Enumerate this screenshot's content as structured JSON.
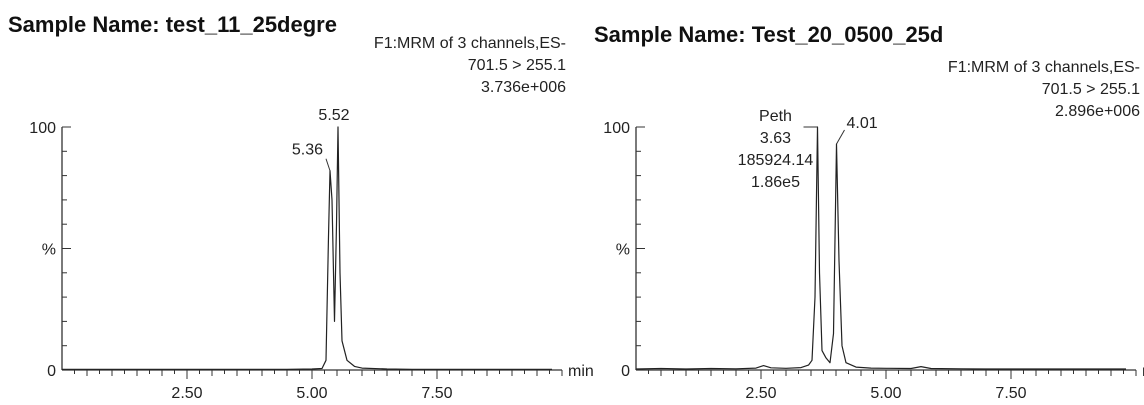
{
  "chart_data": [
    {
      "type": "line",
      "title": "Sample Name: test_11_25degre",
      "header_lines": [
        "F1:MRM of 3 channels,ES-",
        "701.5 > 255.1",
        "3.736e+006"
      ],
      "xlabel": "min",
      "xlim": [
        0,
        10
      ],
      "xticks": [
        2.5,
        5.0,
        7.5
      ],
      "xtick_labels": [
        "2.50",
        "5.00",
        "7.50"
      ],
      "ylim": [
        0,
        100
      ],
      "ytick_labels": {
        "top": "100",
        "mid": "%",
        "bottom": "0"
      },
      "peaks": [
        {
          "label": "5.36",
          "rt": 5.36,
          "height": 82
        },
        {
          "label": "5.52",
          "rt": 5.52,
          "height": 100
        }
      ],
      "series": [
        {
          "x": [
            0.0,
            0.5,
            1.0,
            1.5,
            2.0,
            2.5,
            3.0,
            3.5,
            4.0,
            4.5,
            5.0,
            5.2,
            5.28,
            5.33,
            5.36,
            5.4,
            5.45,
            5.49,
            5.52,
            5.56,
            5.6,
            5.7,
            5.85,
            6.0,
            6.5,
            7.0,
            8.0,
            9.0,
            9.8
          ],
          "y": [
            0.3,
            0.3,
            0.3,
            0.3,
            0.3,
            0.3,
            0.3,
            0.3,
            0.3,
            0.3,
            0.4,
            0.6,
            4,
            55,
            82,
            70,
            20,
            60,
            100,
            40,
            12,
            4,
            1.5,
            0.8,
            0.4,
            0.3,
            0.3,
            0.3,
            0.3
          ]
        }
      ]
    },
    {
      "type": "line",
      "title": "Sample Name: Test_20_0500_25d",
      "header_lines": [
        "F1:MRM of 3 channels,ES-",
        "701.5 > 255.1",
        "2.896e+006"
      ],
      "xlabel": "min",
      "xlim": [
        0,
        10
      ],
      "xticks": [
        2.5,
        5.0,
        7.5
      ],
      "xtick_labels": [
        "2.50",
        "5.00",
        "7.50"
      ],
      "ylim": [
        0,
        100
      ],
      "ytick_labels": {
        "top": "100",
        "mid": "%",
        "bottom": "0"
      },
      "peaks": [
        {
          "label_lines": [
            "Peth",
            "3.63",
            "185924.14",
            "1.86e5"
          ],
          "rt": 3.63,
          "height": 100
        },
        {
          "label": "4.01",
          "rt": 4.01,
          "height": 93
        }
      ],
      "series": [
        {
          "x": [
            0.0,
            0.5,
            1.0,
            1.5,
            2.0,
            2.4,
            2.55,
            2.7,
            3.0,
            3.3,
            3.45,
            3.52,
            3.58,
            3.63,
            3.67,
            3.72,
            3.8,
            3.88,
            3.95,
            4.01,
            4.06,
            4.12,
            4.2,
            4.4,
            4.7,
            5.0,
            5.5,
            5.7,
            5.9,
            6.5,
            7.0,
            8.0,
            9.0,
            9.8
          ],
          "y": [
            0.4,
            0.6,
            0.4,
            0.6,
            0.5,
            0.8,
            1.8,
            0.9,
            0.7,
            1.0,
            2.0,
            4.0,
            30,
            100,
            40,
            8,
            5,
            3,
            15,
            93,
            45,
            10,
            3,
            1.2,
            0.8,
            0.7,
            0.6,
            1.4,
            0.6,
            0.5,
            0.4,
            0.4,
            0.4,
            0.4
          ]
        }
      ]
    }
  ]
}
